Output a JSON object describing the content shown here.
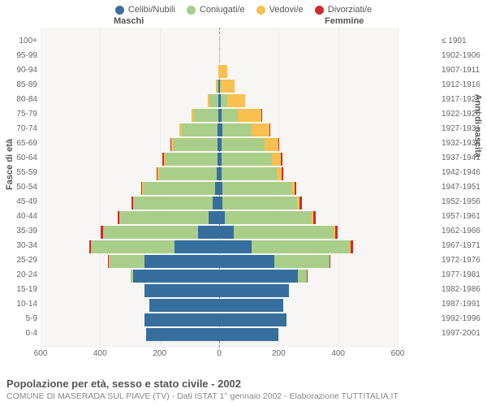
{
  "legend_items": [
    {
      "label": "Celibi/Nubili",
      "color": "#366f9d"
    },
    {
      "label": "Coniugati/e",
      "color": "#a9ce89"
    },
    {
      "label": "Vedovi/e",
      "color": "#f9bf4f"
    },
    {
      "label": "Divorziati/e",
      "color": "#cf2b28"
    }
  ],
  "gender": {
    "male": "Maschi",
    "female": "Femmine"
  },
  "axis": {
    "left_title": "Fasce di età",
    "right_title": "Anni di nascita",
    "x_ticks": [
      600,
      400,
      200,
      0,
      200,
      400,
      600
    ],
    "x_max": 600
  },
  "plot": {
    "bg": "#f7f6f5",
    "grid_color": "#ececec",
    "center_dash": "#888"
  },
  "rows": [
    {
      "age": "100+",
      "birth": "≤ 1901",
      "m": [
        0,
        0,
        0,
        0
      ],
      "f": [
        0,
        0,
        1,
        0
      ]
    },
    {
      "age": "95-99",
      "birth": "1902-1906",
      "m": [
        0,
        0,
        0,
        0
      ],
      "f": [
        0,
        0,
        4,
        0
      ]
    },
    {
      "age": "90-94",
      "birth": "1907-1911",
      "m": [
        0,
        0,
        3,
        0
      ],
      "f": [
        1,
        0,
        25,
        0
      ]
    },
    {
      "age": "85-89",
      "birth": "1912-1916",
      "m": [
        2,
        5,
        4,
        0
      ],
      "f": [
        4,
        2,
        45,
        0
      ]
    },
    {
      "age": "80-84",
      "birth": "1917-1921",
      "m": [
        2,
        30,
        6,
        0
      ],
      "f": [
        6,
        20,
        60,
        0
      ]
    },
    {
      "age": "75-79",
      "birth": "1922-1926",
      "m": [
        4,
        80,
        10,
        0
      ],
      "f": [
        8,
        55,
        80,
        2
      ]
    },
    {
      "age": "70-74",
      "birth": "1927-1931",
      "m": [
        5,
        120,
        10,
        0
      ],
      "f": [
        10,
        100,
        60,
        3
      ]
    },
    {
      "age": "65-69",
      "birth": "1932-1936",
      "m": [
        5,
        150,
        6,
        2
      ],
      "f": [
        8,
        145,
        45,
        3
      ]
    },
    {
      "age": "60-64",
      "birth": "1937-1941",
      "m": [
        6,
        175,
        5,
        4
      ],
      "f": [
        8,
        170,
        30,
        4
      ]
    },
    {
      "age": "55-59",
      "birth": "1942-1946",
      "m": [
        8,
        195,
        3,
        4
      ],
      "f": [
        8,
        185,
        18,
        5
      ]
    },
    {
      "age": "50-54",
      "birth": "1947-1951",
      "m": [
        15,
        240,
        3,
        5
      ],
      "f": [
        12,
        230,
        12,
        6
      ]
    },
    {
      "age": "45-49",
      "birth": "1952-1956",
      "m": [
        22,
        265,
        2,
        5
      ],
      "f": [
        12,
        250,
        8,
        7
      ]
    },
    {
      "age": "40-44",
      "birth": "1957-1961",
      "m": [
        35,
        300,
        1,
        6
      ],
      "f": [
        20,
        290,
        6,
        8
      ]
    },
    {
      "age": "35-39",
      "birth": "1962-1966",
      "m": [
        70,
        320,
        0,
        8
      ],
      "f": [
        50,
        335,
        4,
        10
      ]
    },
    {
      "age": "30-34",
      "birth": "1967-1971",
      "m": [
        150,
        280,
        0,
        6
      ],
      "f": [
        110,
        330,
        2,
        8
      ]
    },
    {
      "age": "25-29",
      "birth": "1972-1976",
      "m": [
        250,
        120,
        0,
        3
      ],
      "f": [
        185,
        185,
        1,
        4
      ]
    },
    {
      "age": "20-24",
      "birth": "1977-1981",
      "m": [
        290,
        8,
        0,
        0
      ],
      "f": [
        265,
        30,
        0,
        1
      ]
    },
    {
      "age": "15-19",
      "birth": "1982-1986",
      "m": [
        250,
        0,
        0,
        0
      ],
      "f": [
        235,
        0,
        0,
        0
      ]
    },
    {
      "age": "10-14",
      "birth": "1987-1991",
      "m": [
        235,
        0,
        0,
        0
      ],
      "f": [
        215,
        0,
        0,
        0
      ]
    },
    {
      "age": "5-9",
      "birth": "1992-1996",
      "m": [
        250,
        0,
        0,
        0
      ],
      "f": [
        225,
        0,
        0,
        0
      ]
    },
    {
      "age": "0-4",
      "birth": "1997-2001",
      "m": [
        245,
        0,
        0,
        0
      ],
      "f": [
        200,
        0,
        0,
        0
      ]
    }
  ],
  "footer": {
    "title": "Popolazione per età, sesso e stato civile - 2002",
    "subtitle": "COMUNE DI MASERADA SUL PIAVE (TV) - Dati ISTAT 1° gennaio 2002 - Elaborazione TUTTITALIA.IT"
  }
}
